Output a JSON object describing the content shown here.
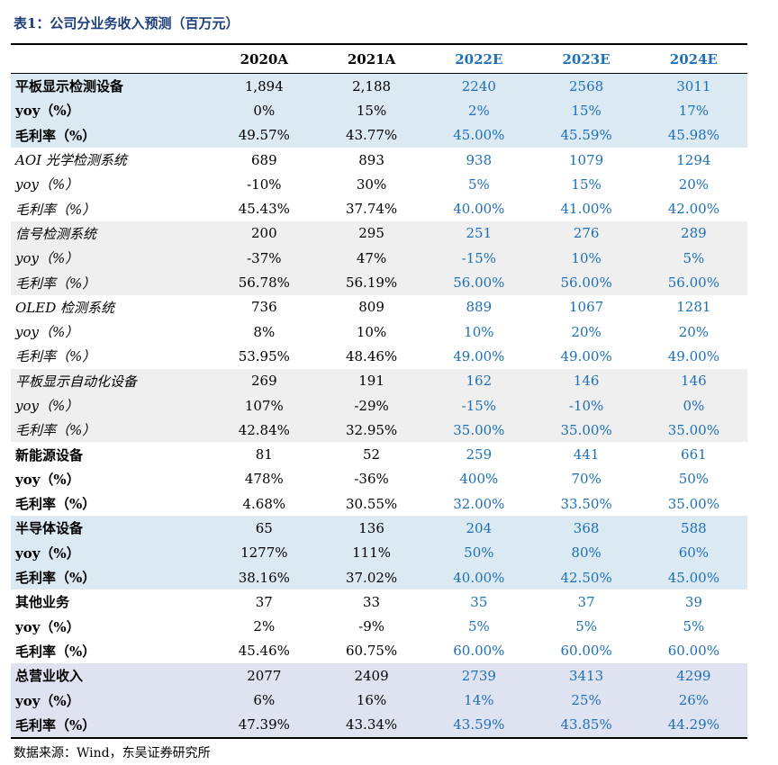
{
  "title": "表1：公司分业务收入预测（百万元）",
  "header": {
    "blank": "",
    "years": [
      "2020A",
      "2021A",
      "2022E",
      "2023E",
      "2024E"
    ]
  },
  "groups": [
    {
      "style": "shade-blue",
      "font": "bold",
      "rows": [
        {
          "label": "平板显示检测设备",
          "values": [
            "1,894",
            "2,188",
            "2240",
            "2568",
            "3011"
          ]
        },
        {
          "label": "yoy（%）",
          "values": [
            "0%",
            "15%",
            "2%",
            "15%",
            "17%"
          ]
        },
        {
          "label": "毛利率（%）",
          "values": [
            "49.57%",
            "43.77%",
            "45.00%",
            "45.59%",
            "45.98%"
          ]
        }
      ]
    },
    {
      "style": "white",
      "font": "italic",
      "rows": [
        {
          "label": "AOI 光学检测系统",
          "values": [
            "689",
            "893",
            "938",
            "1079",
            "1294"
          ]
        },
        {
          "label": "yoy（%）",
          "values": [
            "-10%",
            "30%",
            "5%",
            "15%",
            "20%"
          ]
        },
        {
          "label": "毛利率（%）",
          "values": [
            "45.43%",
            "37.74%",
            "40.00%",
            "41.00%",
            "42.00%"
          ]
        }
      ]
    },
    {
      "style": "shade-grey",
      "font": "italic",
      "rows": [
        {
          "label": "信号检测系统",
          "values": [
            "200",
            "295",
            "251",
            "276",
            "289"
          ]
        },
        {
          "label": "yoy（%）",
          "values": [
            "-37%",
            "47%",
            "-15%",
            "10%",
            "5%"
          ]
        },
        {
          "label": "毛利率（%）",
          "values": [
            "56.78%",
            "56.19%",
            "56.00%",
            "56.00%",
            "56.00%"
          ]
        }
      ]
    },
    {
      "style": "white",
      "font": "italic",
      "rows": [
        {
          "label": "OLED 检测系统",
          "values": [
            "736",
            "809",
            "889",
            "1067",
            "1281"
          ]
        },
        {
          "label": "yoy（%）",
          "values": [
            "8%",
            "10%",
            "10%",
            "20%",
            "20%"
          ]
        },
        {
          "label": "毛利率（%）",
          "values": [
            "53.95%",
            "48.46%",
            "49.00%",
            "49.00%",
            "49.00%"
          ]
        }
      ]
    },
    {
      "style": "shade-grey",
      "font": "italic",
      "rows": [
        {
          "label": "平板显示自动化设备",
          "values": [
            "269",
            "191",
            "162",
            "146",
            "146"
          ]
        },
        {
          "label": "yoy（%）",
          "values": [
            "107%",
            "-29%",
            "-15%",
            "-10%",
            "0%"
          ]
        },
        {
          "label": "毛利率（%）",
          "values": [
            "42.84%",
            "32.95%",
            "35.00%",
            "35.00%",
            "35.00%"
          ]
        }
      ]
    },
    {
      "style": "white",
      "font": "bold",
      "rows": [
        {
          "label": "新能源设备",
          "values": [
            "81",
            "52",
            "259",
            "441",
            "661"
          ]
        },
        {
          "label": "yoy（%）",
          "values": [
            "478%",
            "-36%",
            "400%",
            "70%",
            "50%"
          ]
        },
        {
          "label": "毛利率（%）",
          "values": [
            "4.68%",
            "30.55%",
            "32.00%",
            "33.50%",
            "35.00%"
          ]
        }
      ]
    },
    {
      "style": "shade-blue",
      "font": "bold",
      "rows": [
        {
          "label": "半导体设备",
          "values": [
            "65",
            "136",
            "204",
            "368",
            "588"
          ]
        },
        {
          "label": "yoy（%）",
          "values": [
            "1277%",
            "111%",
            "50%",
            "80%",
            "60%"
          ]
        },
        {
          "label": "毛利率（%）",
          "values": [
            "38.16%",
            "37.02%",
            "40.00%",
            "42.50%",
            "45.00%"
          ]
        }
      ]
    },
    {
      "style": "white",
      "font": "bold",
      "rows": [
        {
          "label": "其他业务",
          "values": [
            "37",
            "33",
            "35",
            "37",
            "39"
          ]
        },
        {
          "label": "yoy（%）",
          "values": [
            "2%",
            "-9%",
            "5%",
            "5%",
            "5%"
          ]
        },
        {
          "label": "毛利率（%）",
          "values": [
            "45.46%",
            "60.75%",
            "60.00%",
            "60.00%",
            "60.00%"
          ]
        }
      ]
    },
    {
      "style": "shade-lav",
      "font": "bold",
      "rows": [
        {
          "label": "总营业收入",
          "values": [
            "2077",
            "2409",
            "2739",
            "3413",
            "4299"
          ]
        },
        {
          "label": "yoy（%）",
          "values": [
            "6%",
            "16%",
            "14%",
            "25%",
            "26%"
          ]
        },
        {
          "label": "毛利率（%）",
          "values": [
            "47.39%",
            "43.34%",
            "43.59%",
            "43.85%",
            "44.29%"
          ]
        }
      ]
    }
  ],
  "colors": {
    "forecast": "#1d6fb8",
    "title": "#1f3f7a",
    "shade_blue": "#dbe9f3",
    "shade_grey": "#efefef",
    "shade_lav": "#dfe3f1"
  },
  "source": "数据来源：Wind，东吴证券研究所"
}
